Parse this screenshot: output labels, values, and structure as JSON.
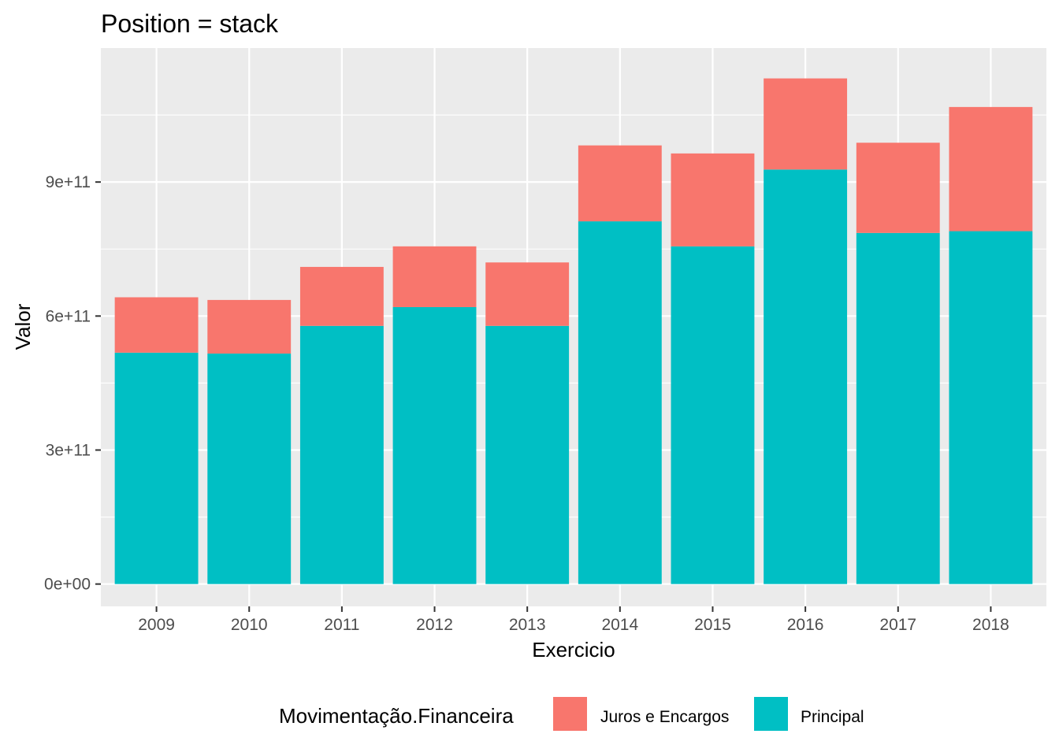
{
  "chart_data": {
    "type": "bar",
    "stacked": true,
    "title": "Position = stack",
    "xlabel": "Exercicio",
    "ylabel": "Valor",
    "categories": [
      "2009",
      "2010",
      "2011",
      "2012",
      "2013",
      "2014",
      "2015",
      "2016",
      "2017",
      "2018"
    ],
    "series": [
      {
        "name": "Principal",
        "color": "#00BFC4",
        "values": [
          518000000000.0,
          516000000000.0,
          578000000000.0,
          620000000000.0,
          578000000000.0,
          812000000000.0,
          756000000000.0,
          928000000000.0,
          786000000000.0,
          790000000000.0
        ]
      },
      {
        "name": "Juros e Encargos",
        "color": "#F8766D",
        "values": [
          124000000000.0,
          120000000000.0,
          132000000000.0,
          136000000000.0,
          142000000000.0,
          170000000000.0,
          208000000000.0,
          204000000000.0,
          202000000000.0,
          278000000000.0
        ]
      }
    ],
    "ylim": [
      -50000000000.0,
      1200000000000.0
    ],
    "yticks": [
      0,
      300000000000.0,
      600000000000.0,
      900000000000.0
    ],
    "ytick_labels": [
      "0e+00",
      "3e+11",
      "6e+11",
      "9e+11"
    ],
    "grid": true,
    "legend": {
      "title": "Movimentação.Financeira",
      "position": "bottom",
      "entries": [
        {
          "label": "Juros e Encargos",
          "color": "#F8766D"
        },
        {
          "label": "Principal",
          "color": "#00BFC4"
        }
      ]
    },
    "panel_background": "#EBEBEB",
    "grid_color": "#FFFFFF"
  }
}
